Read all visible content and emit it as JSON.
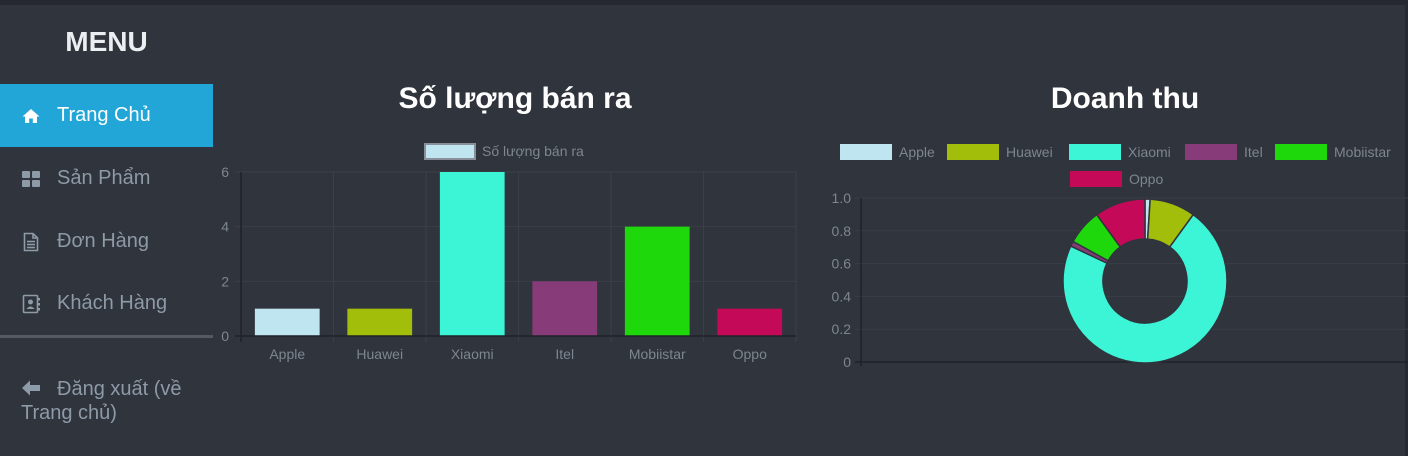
{
  "sidebar": {
    "title": "MENU",
    "items": [
      {
        "label": "Trang Chủ",
        "icon": "home-icon",
        "active": true
      },
      {
        "label": "Sản Phẩm",
        "icon": "grid-icon",
        "active": false
      },
      {
        "label": "Đơn Hàng",
        "icon": "document-icon",
        "active": false
      },
      {
        "label": "Khách Hàng",
        "icon": "contact-card-icon",
        "active": false
      }
    ],
    "logout_label": "Đăng xuất (về Trang chủ)"
  },
  "colors": {
    "Apple": "#bfe5f0",
    "Huawei": "#a2bd0a",
    "Xiaomi": "#3bf5d6",
    "Itel": "#873b78",
    "Mobiistar": "#1ed80b",
    "Oppo": "#c40959",
    "active_nav": "#22a5d7"
  },
  "chart_data": [
    {
      "type": "bar",
      "title": "Số lượng bán ra",
      "categories": [
        "Apple",
        "Huawei",
        "Xiaomi",
        "Itel",
        "Mobiistar",
        "Oppo"
      ],
      "series": [
        {
          "name": "Số lượng bán ra",
          "values": [
            1,
            1,
            6,
            2,
            4,
            1
          ]
        }
      ],
      "ylim": [
        0,
        6
      ],
      "yticks": [
        "0",
        "2",
        "4",
        "6"
      ],
      "legend": "top",
      "grid": true
    },
    {
      "type": "pie",
      "title": "Doanh thu",
      "variant": "doughnut",
      "labels": [
        "Apple",
        "Huawei",
        "Xiaomi",
        "Itel",
        "Mobiistar",
        "Oppo"
      ],
      "values": [
        1,
        9,
        72,
        1,
        7,
        10
      ],
      "yticks": [
        "0",
        "0.2",
        "0.4",
        "0.6",
        "0.8",
        "1.0"
      ],
      "ylim": [
        0,
        1
      ],
      "legend": "top",
      "grid": true
    }
  ]
}
